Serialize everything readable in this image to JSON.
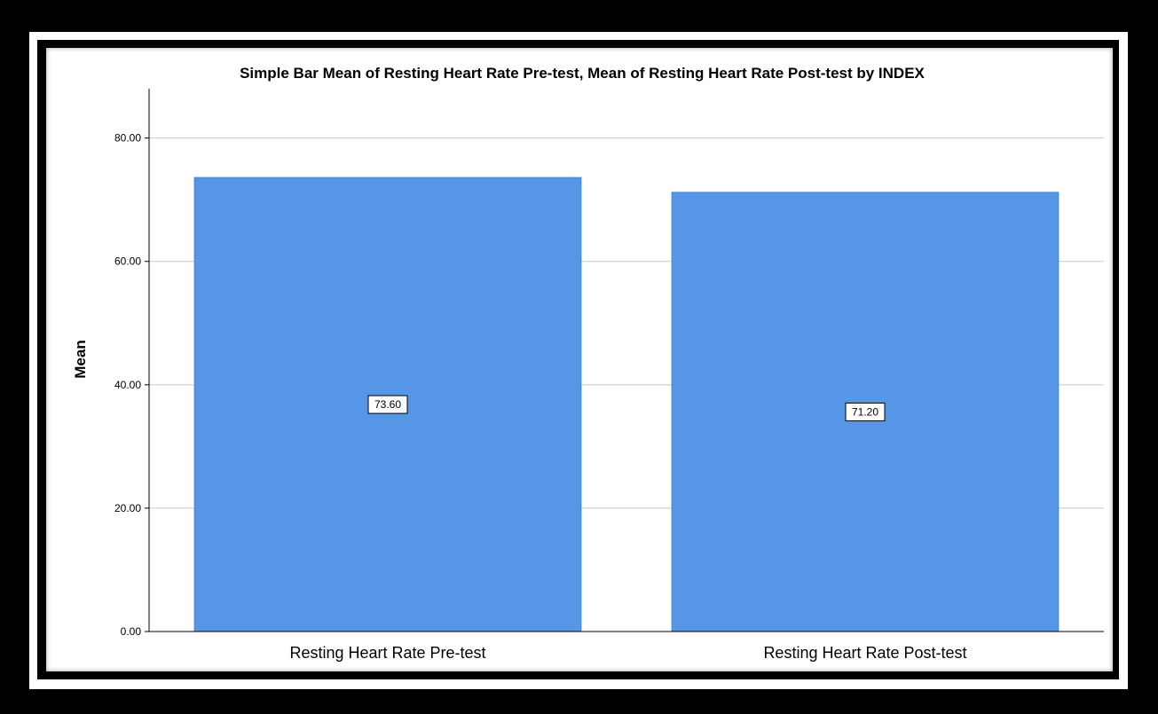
{
  "chart_data": {
    "type": "bar",
    "title": "Simple Bar Mean of Resting Heart Rate Pre-test, Mean of Resting Heart Rate Post-test by INDEX",
    "xlabel": "",
    "ylabel": "Mean",
    "categories": [
      "Resting Heart Rate Pre-test",
      "Resting Heart Rate Post-test"
    ],
    "values": [
      73.6,
      71.2
    ],
    "data_labels": [
      "73.60",
      "71.20"
    ],
    "y_ticks": [
      "0.00",
      "20.00",
      "40.00",
      "60.00",
      "80.00"
    ],
    "y_tick_values": [
      0,
      20,
      40,
      60,
      80
    ],
    "ylim": [
      0,
      88
    ],
    "grid": true,
    "legend": "none",
    "colors": {
      "bar": "#5596e6",
      "grid": "#c8c8c8",
      "axis": "#000000"
    }
  }
}
